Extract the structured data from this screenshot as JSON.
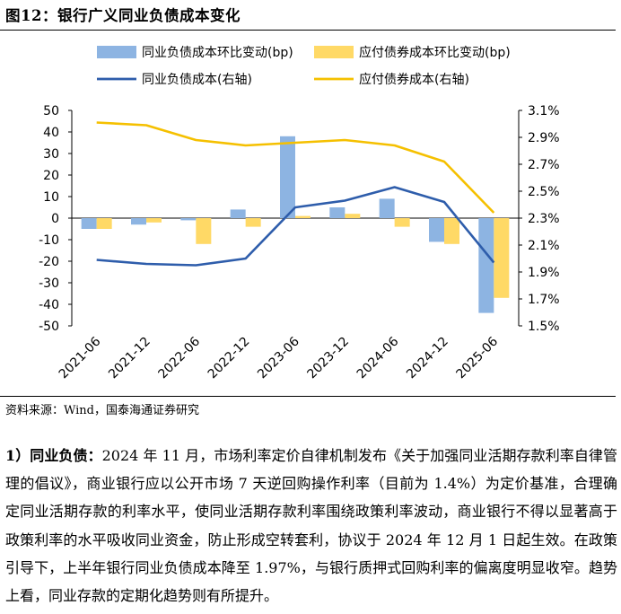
{
  "figure": {
    "title": "图12：银行广义同业负债成本变化",
    "source": "资料来源：Wind，国泰海通证券研究"
  },
  "paragraph": {
    "label": "1）同业负债：",
    "text": "2024 年 11 月，市场利率定价自律机制发布《关于加强同业活期存款利率自律管理的倡议》，商业银行应以公开市场 7 天逆回购操作利率（目前为 1.4%）为定价基准，合理确定同业活期存款的利率水平，使同业活期存款利率围绕政策利率波动，商业银行不得以显著高于政策利率的水平吸收同业资金，防止形成空转套利，协议于 2024 年 12 月 1 日起生效。在政策引导下，上半年银行同业负债成本降至 1.97%，与银行质押式回购利率的偏离度明显收窄。趋势上看，同业存款的定期化趋势则有所提升。"
  },
  "chart_data": {
    "type": "bar+line",
    "categories": [
      "2021-06",
      "2021-12",
      "2022-06",
      "2022-12",
      "2023-06",
      "2023-12",
      "2024-06",
      "2024-12",
      "2025-06"
    ],
    "left_axis": {
      "ylim": [
        -50,
        50
      ],
      "ticks": [
        "50",
        "40",
        "30",
        "20",
        "10",
        "0",
        "-10",
        "-20",
        "-30",
        "-40",
        "-50"
      ]
    },
    "right_axis": {
      "ylim": [
        1.5,
        3.1
      ],
      "ticks": [
        "3.1%",
        "2.9%",
        "2.7%",
        "2.5%",
        "2.3%",
        "2.1%",
        "1.9%",
        "1.7%",
        "1.5%"
      ]
    },
    "series": [
      {
        "name": "同业负债成本环比变动(bp)",
        "kind": "bar",
        "axis": "left",
        "color": "#8db4e2",
        "values": [
          -5,
          -3,
          -1,
          4,
          38,
          5,
          9,
          -11,
          -44
        ]
      },
      {
        "name": "应付债券成本环比变动(bp)",
        "kind": "bar",
        "axis": "left",
        "color": "#ffd966",
        "values": [
          -5,
          -2,
          -12,
          -4,
          1,
          2,
          -4,
          -12,
          -37
        ]
      },
      {
        "name": "同业负债成本(右轴)",
        "kind": "line",
        "axis": "right",
        "color": "#2e5dab",
        "values": [
          1.99,
          1.96,
          1.95,
          2.0,
          2.38,
          2.43,
          2.53,
          2.42,
          1.97
        ]
      },
      {
        "name": "应付债券成本(右轴)",
        "kind": "line",
        "axis": "right",
        "color": "#f5c000",
        "values": [
          3.01,
          2.99,
          2.88,
          2.84,
          2.86,
          2.88,
          2.84,
          2.72,
          2.34
        ]
      }
    ],
    "legend_position": "top",
    "grid": false
  }
}
